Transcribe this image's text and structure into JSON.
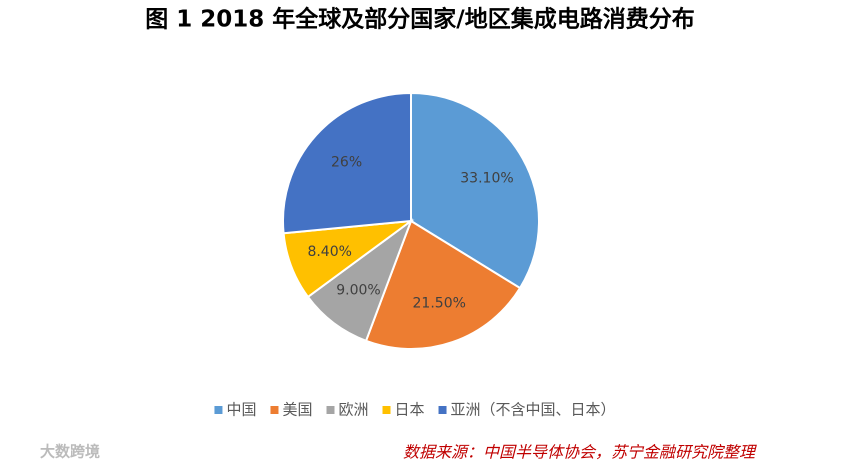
{
  "chart_data": {
    "type": "pie",
    "title": "图 1 2018 年全球及部分国家/地区集成电路消费分布",
    "categories": [
      "中国",
      "美国",
      "欧洲",
      "日本",
      "亚洲（不含中国、日本）"
    ],
    "values": [
      33.1,
      21.5,
      9.0,
      8.4,
      26
    ],
    "value_labels": [
      "33.10%",
      "21.50%",
      "9.00%",
      "8.40%",
      "26%"
    ],
    "colors": [
      "#5b9bd5",
      "#ed7d31",
      "#a5a5a5",
      "#ffc000",
      "#4472c4"
    ],
    "legend": "bottom",
    "source": "数据来源：中国半导体协会，苏宁金融研究院整理",
    "watermark": "大数跨境"
  }
}
